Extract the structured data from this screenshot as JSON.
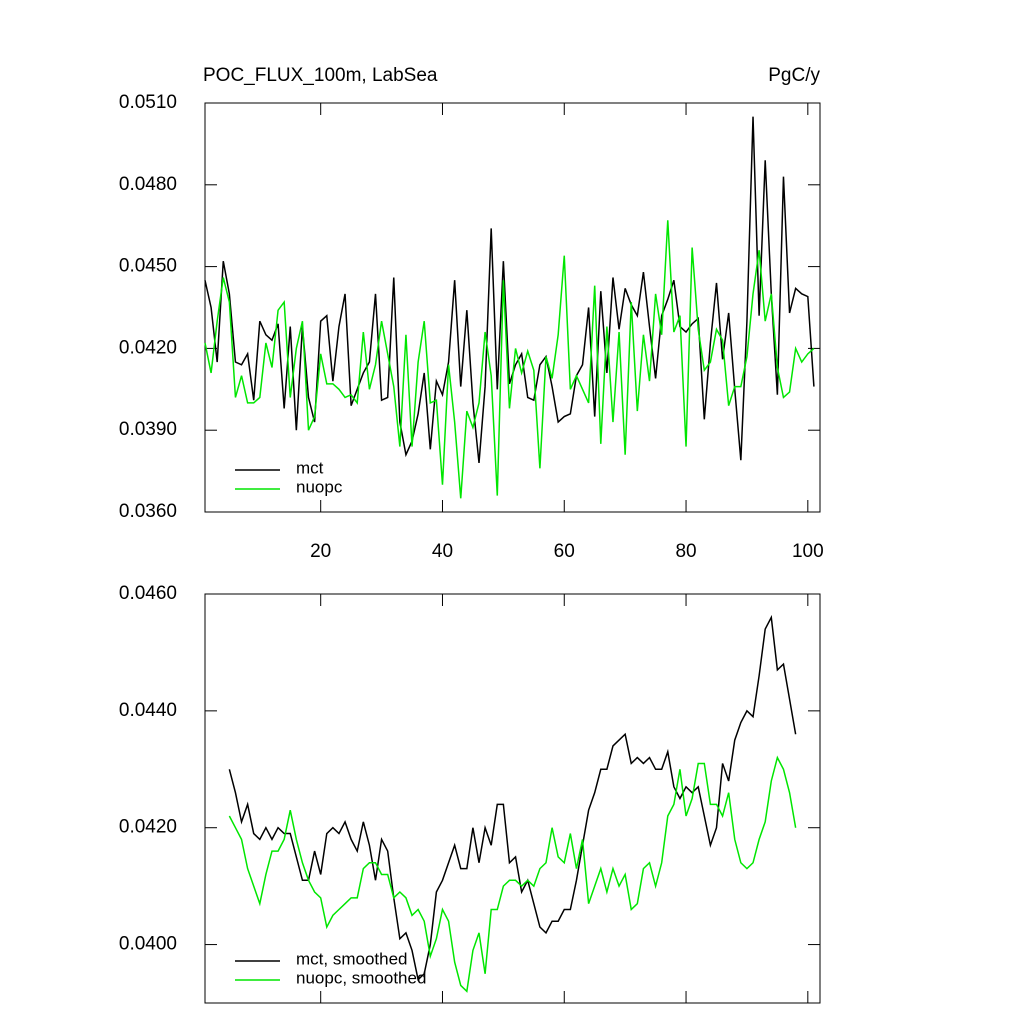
{
  "chart_data": [
    {
      "type": "line",
      "title": "POC_FLUX_100m, LabSea",
      "y_units": "PgC/y",
      "x": [
        1,
        2,
        3,
        4,
        5,
        6,
        7,
        8,
        9,
        10,
        11,
        12,
        13,
        14,
        15,
        16,
        17,
        18,
        19,
        20,
        21,
        22,
        23,
        24,
        25,
        26,
        27,
        28,
        29,
        30,
        31,
        32,
        33,
        34,
        35,
        36,
        37,
        38,
        39,
        40,
        41,
        42,
        43,
        44,
        45,
        46,
        47,
        48,
        49,
        50,
        51,
        52,
        53,
        54,
        55,
        56,
        57,
        58,
        59,
        60,
        61,
        62,
        63,
        64,
        65,
        66,
        67,
        68,
        69,
        70,
        71,
        72,
        73,
        74,
        75,
        76,
        77,
        78,
        79,
        80,
        81,
        82,
        83,
        84,
        85,
        86,
        87,
        88,
        89,
        90,
        91,
        92,
        93,
        94,
        95,
        96,
        97,
        98,
        99,
        100,
        101
      ],
      "series": [
        {
          "name": "mct",
          "color": "#000000",
          "values": [
            0.0445,
            0.0435,
            0.0415,
            0.0452,
            0.044,
            0.0415,
            0.0414,
            0.0418,
            0.0401,
            0.043,
            0.0425,
            0.0423,
            0.0429,
            0.0398,
            0.0428,
            0.039,
            0.0428,
            0.0402,
            0.0393,
            0.043,
            0.0432,
            0.0408,
            0.0428,
            0.044,
            0.0399,
            0.0405,
            0.0411,
            0.0415,
            0.044,
            0.0401,
            0.0402,
            0.0446,
            0.0393,
            0.0381,
            0.0386,
            0.0396,
            0.0411,
            0.0383,
            0.0408,
            0.0403,
            0.0415,
            0.0445,
            0.0406,
            0.0434,
            0.04,
            0.0378,
            0.0406,
            0.0464,
            0.0405,
            0.0452,
            0.0407,
            0.0414,
            0.0418,
            0.0402,
            0.0401,
            0.0414,
            0.0417,
            0.0406,
            0.0393,
            0.0395,
            0.0396,
            0.041,
            0.0414,
            0.0435,
            0.0395,
            0.0441,
            0.0411,
            0.0446,
            0.0427,
            0.0442,
            0.0436,
            0.0432,
            0.0448,
            0.0428,
            0.0409,
            0.0432,
            0.0438,
            0.0445,
            0.0428,
            0.0426,
            0.0429,
            0.0431,
            0.0394,
            0.0422,
            0.0444,
            0.0416,
            0.0433,
            0.0405,
            0.0379,
            0.043,
            0.0505,
            0.0432,
            0.0489,
            0.044,
            0.0403,
            0.0483,
            0.0433,
            0.0442,
            0.044,
            0.0439,
            0.0406
          ]
        },
        {
          "name": "nuopc",
          "color": "#00e600",
          "values": [
            0.0422,
            0.0411,
            0.043,
            0.0446,
            0.0437,
            0.0402,
            0.041,
            0.04,
            0.04,
            0.0402,
            0.0422,
            0.0413,
            0.0434,
            0.0437,
            0.0402,
            0.042,
            0.043,
            0.039,
            0.0395,
            0.0418,
            0.0407,
            0.0407,
            0.0405,
            0.0402,
            0.0403,
            0.04,
            0.0426,
            0.0405,
            0.0414,
            0.043,
            0.0418,
            0.0406,
            0.0384,
            0.0425,
            0.0384,
            0.0415,
            0.043,
            0.04,
            0.0401,
            0.037,
            0.0414,
            0.0393,
            0.0365,
            0.0397,
            0.0391,
            0.04,
            0.0426,
            0.041,
            0.0366,
            0.0445,
            0.0398,
            0.042,
            0.0411,
            0.0419,
            0.0412,
            0.0376,
            0.0417,
            0.0409,
            0.0425,
            0.0454,
            0.0405,
            0.041,
            0.0405,
            0.04,
            0.0443,
            0.0385,
            0.0428,
            0.0393,
            0.0426,
            0.0381,
            0.0437,
            0.0397,
            0.0425,
            0.0408,
            0.044,
            0.0425,
            0.0467,
            0.0426,
            0.0432,
            0.0384,
            0.0457,
            0.0427,
            0.0412,
            0.0415,
            0.0427,
            0.0423,
            0.0399,
            0.0406,
            0.0406,
            0.0417,
            0.044,
            0.0456,
            0.043,
            0.044,
            0.0413,
            0.0402,
            0.0404,
            0.042,
            0.0415,
            0.0418,
            0.042
          ]
        }
      ],
      "xlim": [
        1,
        102
      ],
      "xticks": [
        20,
        40,
        60,
        80,
        100
      ],
      "ylim": [
        0.036,
        0.051
      ],
      "yticks": [
        {
          "value": 0.036,
          "label": "0.0360"
        },
        {
          "value": 0.039,
          "label": "0.0390"
        },
        {
          "value": 0.042,
          "label": "0.0420"
        },
        {
          "value": 0.045,
          "label": "0.0450"
        },
        {
          "value": 0.048,
          "label": "0.0480"
        },
        {
          "value": 0.051,
          "label": "0.0510"
        }
      ],
      "legend": "lower left"
    },
    {
      "type": "line",
      "x": [
        5,
        6,
        7,
        8,
        9,
        10,
        11,
        12,
        13,
        14,
        15,
        16,
        17,
        18,
        19,
        20,
        21,
        22,
        23,
        24,
        25,
        26,
        27,
        28,
        29,
        30,
        31,
        32,
        33,
        34,
        35,
        36,
        37,
        38,
        39,
        40,
        41,
        42,
        43,
        44,
        45,
        46,
        47,
        48,
        49,
        50,
        51,
        52,
        53,
        54,
        55,
        56,
        57,
        58,
        59,
        60,
        61,
        62,
        63,
        64,
        65,
        66,
        67,
        68,
        69,
        70,
        71,
        72,
        73,
        74,
        75,
        76,
        77,
        78,
        79,
        80,
        81,
        82,
        83,
        84,
        85,
        86,
        87,
        88,
        89,
        90,
        91,
        92,
        93,
        94,
        95,
        96,
        97,
        98
      ],
      "series": [
        {
          "name": "mct, smoothed",
          "color": "#000000",
          "values": [
            0.043,
            0.0426,
            0.0421,
            0.0424,
            0.0419,
            0.0418,
            0.042,
            0.0418,
            0.042,
            0.0419,
            0.0419,
            0.0415,
            0.0411,
            0.0411,
            0.0416,
            0.0412,
            0.0419,
            0.042,
            0.0419,
            0.0421,
            0.0418,
            0.0416,
            0.0421,
            0.0417,
            0.0411,
            0.0418,
            0.0416,
            0.0408,
            0.0401,
            0.0402,
            0.0399,
            0.0394,
            0.0395,
            0.04,
            0.0409,
            0.0411,
            0.0414,
            0.0417,
            0.0413,
            0.0413,
            0.042,
            0.0414,
            0.042,
            0.0417,
            0.0424,
            0.0424,
            0.0414,
            0.0415,
            0.0409,
            0.0411,
            0.0407,
            0.0403,
            0.0402,
            0.0404,
            0.0404,
            0.0406,
            0.0406,
            0.0411,
            0.0417,
            0.0423,
            0.0426,
            0.043,
            0.043,
            0.0434,
            0.0435,
            0.0436,
            0.0431,
            0.0432,
            0.0431,
            0.0432,
            0.043,
            0.043,
            0.0433,
            0.0427,
            0.0425,
            0.0427,
            0.0426,
            0.0427,
            0.0422,
            0.0417,
            0.042,
            0.0431,
            0.0428,
            0.0435,
            0.0438,
            0.044,
            0.0439,
            0.0446,
            0.0454,
            0.0456,
            0.0447,
            0.0448,
            0.0442,
            0.0436
          ]
        },
        {
          "name": "nuopc, smoothed",
          "color": "#00e600",
          "values": [
            0.0422,
            0.042,
            0.0418,
            0.0413,
            0.041,
            0.0407,
            0.0412,
            0.0416,
            0.0416,
            0.0418,
            0.0423,
            0.0418,
            0.0414,
            0.0411,
            0.0409,
            0.0408,
            0.0403,
            0.0405,
            0.0406,
            0.0407,
            0.0408,
            0.0408,
            0.0413,
            0.0414,
            0.0414,
            0.0412,
            0.0412,
            0.0408,
            0.0409,
            0.0408,
            0.0405,
            0.0406,
            0.0404,
            0.0398,
            0.0401,
            0.0406,
            0.0404,
            0.0397,
            0.0393,
            0.0392,
            0.0399,
            0.0402,
            0.0395,
            0.0406,
            0.0406,
            0.041,
            0.0411,
            0.0411,
            0.041,
            0.0411,
            0.041,
            0.0413,
            0.0414,
            0.042,
            0.0415,
            0.0414,
            0.0419,
            0.0413,
            0.0418,
            0.0407,
            0.041,
            0.0413,
            0.0409,
            0.0413,
            0.041,
            0.0412,
            0.0406,
            0.0407,
            0.0413,
            0.0414,
            0.041,
            0.0414,
            0.0422,
            0.0424,
            0.043,
            0.0422,
            0.0425,
            0.0431,
            0.0431,
            0.0424,
            0.0424,
            0.0422,
            0.0426,
            0.0418,
            0.0414,
            0.0413,
            0.0414,
            0.0418,
            0.0421,
            0.0428,
            0.0432,
            0.043,
            0.0426,
            0.042
          ]
        }
      ],
      "xlim": [
        1,
        102
      ],
      "xticks": [
        20,
        40,
        60,
        80,
        100
      ],
      "ylim": [
        0.039,
        0.046
      ],
      "yticks": [
        {
          "value": 0.04,
          "label": "0.0400"
        },
        {
          "value": 0.042,
          "label": "0.0420"
        },
        {
          "value": 0.044,
          "label": "0.0440"
        },
        {
          "value": 0.046,
          "label": "0.0460"
        }
      ],
      "legend": "lower left"
    }
  ]
}
